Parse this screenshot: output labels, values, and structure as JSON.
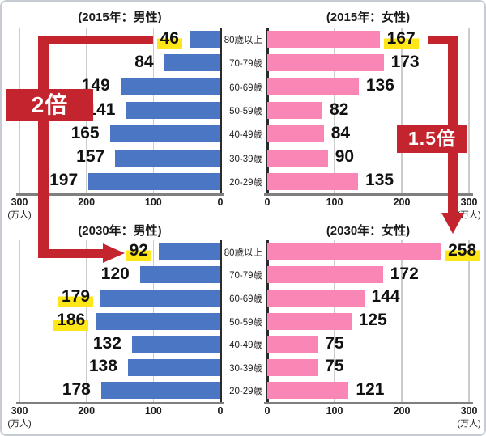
{
  "colors": {
    "bar_blue": "#4a76c4",
    "bar_pink": "#f986b4",
    "highlight_yellow": "#ffe619",
    "annotation_red": "#c4242e"
  },
  "chart_data": {
    "type": "bar",
    "orientation": "horizontal",
    "unit_label": "(万人)",
    "categories": [
      "80歳以上",
      "70-79歳",
      "60-69歳",
      "50-59歳",
      "40-49歳",
      "30-39歳",
      "20-29歳"
    ],
    "xlim": [
      0,
      300
    ],
    "x_ticks": [
      0,
      100,
      200,
      300
    ],
    "x_tick_labels": [
      "0",
      "100",
      "200",
      "300"
    ],
    "grid": true,
    "charts": [
      {
        "key": "male-2015",
        "title": "(2015年：男性)",
        "direction": "right-to-left",
        "bar_color": "#4a76c4",
        "values": [
          46,
          84,
          149,
          141,
          165,
          157,
          197
        ],
        "highlighted_values": [
          46
        ]
      },
      {
        "key": "female-2015",
        "title": "(2015年：女性)",
        "direction": "left-to-right",
        "bar_color": "#f986b4",
        "values": [
          167,
          173,
          136,
          82,
          84,
          90,
          135
        ],
        "highlighted_values": [
          167
        ]
      },
      {
        "key": "male-2030",
        "title": "(2030年：男性)",
        "direction": "right-to-left",
        "bar_color": "#4a76c4",
        "values": [
          92,
          120,
          179,
          186,
          132,
          138,
          178
        ],
        "highlighted_values": [
          92,
          179,
          186
        ]
      },
      {
        "key": "female-2030",
        "title": "(2030年：女性)",
        "direction": "left-to-right",
        "bar_color": "#f986b4",
        "values": [
          258,
          172,
          144,
          125,
          75,
          75,
          121
        ],
        "highlighted_values": [
          258
        ]
      }
    ],
    "annotations": [
      {
        "label": "2倍",
        "connects": {
          "from_chart": "male-2015",
          "from_value": 46,
          "to_chart": "male-2030",
          "to_value": 92
        }
      },
      {
        "label": "1.5倍",
        "connects": {
          "from_chart": "female-2015",
          "from_value": 167,
          "to_chart": "female-2030",
          "to_value": 258
        }
      }
    ]
  }
}
